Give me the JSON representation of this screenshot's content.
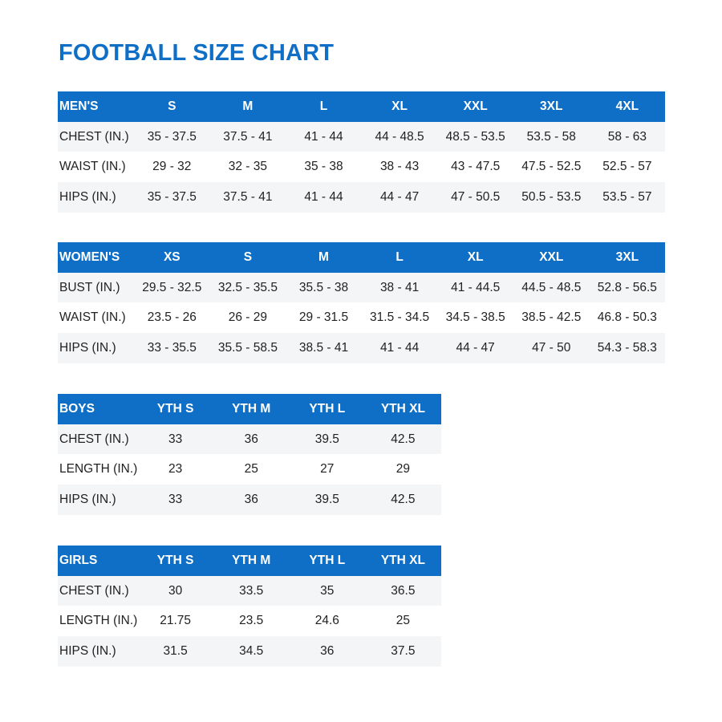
{
  "title": "FOOTBALL SIZE CHART",
  "colors": {
    "accent": "#0f6fc6",
    "stripe": "#f4f5f7"
  },
  "tables": [
    {
      "headers": [
        "MEN'S",
        "S",
        "M",
        "L",
        "XL",
        "XXL",
        "3XL",
        "4XL"
      ],
      "rows": [
        [
          "CHEST (IN.)",
          "35 - 37.5",
          "37.5 - 41",
          "41 - 44",
          "44 - 48.5",
          "48.5 - 53.5",
          "53.5 - 58",
          "58 - 63"
        ],
        [
          "WAIST (IN.)",
          "29 - 32",
          "32 - 35",
          "35 - 38",
          "38 - 43",
          "43 - 47.5",
          "47.5 - 52.5",
          "52.5 - 57"
        ],
        [
          "HIPS (IN.)",
          "35 - 37.5",
          "37.5 - 41",
          "41 - 44",
          "44 - 47",
          "47 - 50.5",
          "50.5 - 53.5",
          "53.5 - 57"
        ]
      ]
    },
    {
      "headers": [
        "WOMEN'S",
        "XS",
        "S",
        "M",
        "L",
        "XL",
        "XXL",
        "3XL"
      ],
      "rows": [
        [
          "BUST (IN.)",
          "29.5 - 32.5",
          "32.5 - 35.5",
          "35.5 - 38",
          "38 - 41",
          "41 - 44.5",
          "44.5 - 48.5",
          "52.8 - 56.5"
        ],
        [
          "WAIST (IN.)",
          "23.5 - 26",
          "26 - 29",
          "29 - 31.5",
          "31.5 - 34.5",
          "34.5 - 38.5",
          "38.5 - 42.5",
          "46.8 - 50.3"
        ],
        [
          "HIPS (IN.)",
          "33 - 35.5",
          "35.5 - 58.5",
          "38.5 - 41",
          "41 - 44",
          "44 - 47",
          "47 - 50",
          "54.3 - 58.3"
        ]
      ]
    },
    {
      "headers": [
        "BOYS",
        "YTH S",
        "YTH M",
        "YTH L",
        "YTH XL"
      ],
      "rows": [
        [
          "CHEST (IN.)",
          "33",
          "36",
          "39.5",
          "42.5"
        ],
        [
          "LENGTH (IN.)",
          "23",
          "25",
          "27",
          "29"
        ],
        [
          "HIPS (IN.)",
          "33",
          "36",
          "39.5",
          "42.5"
        ]
      ]
    },
    {
      "headers": [
        "GIRLS",
        "YTH S",
        "YTH M",
        "YTH L",
        "YTH XL"
      ],
      "rows": [
        [
          "CHEST (IN.)",
          "30",
          "33.5",
          "35",
          "36.5"
        ],
        [
          "LENGTH (IN.)",
          "21.75",
          "23.5",
          "24.6",
          "25"
        ],
        [
          "HIPS (IN.)",
          "31.5",
          "34.5",
          "36",
          "37.5"
        ]
      ]
    }
  ]
}
